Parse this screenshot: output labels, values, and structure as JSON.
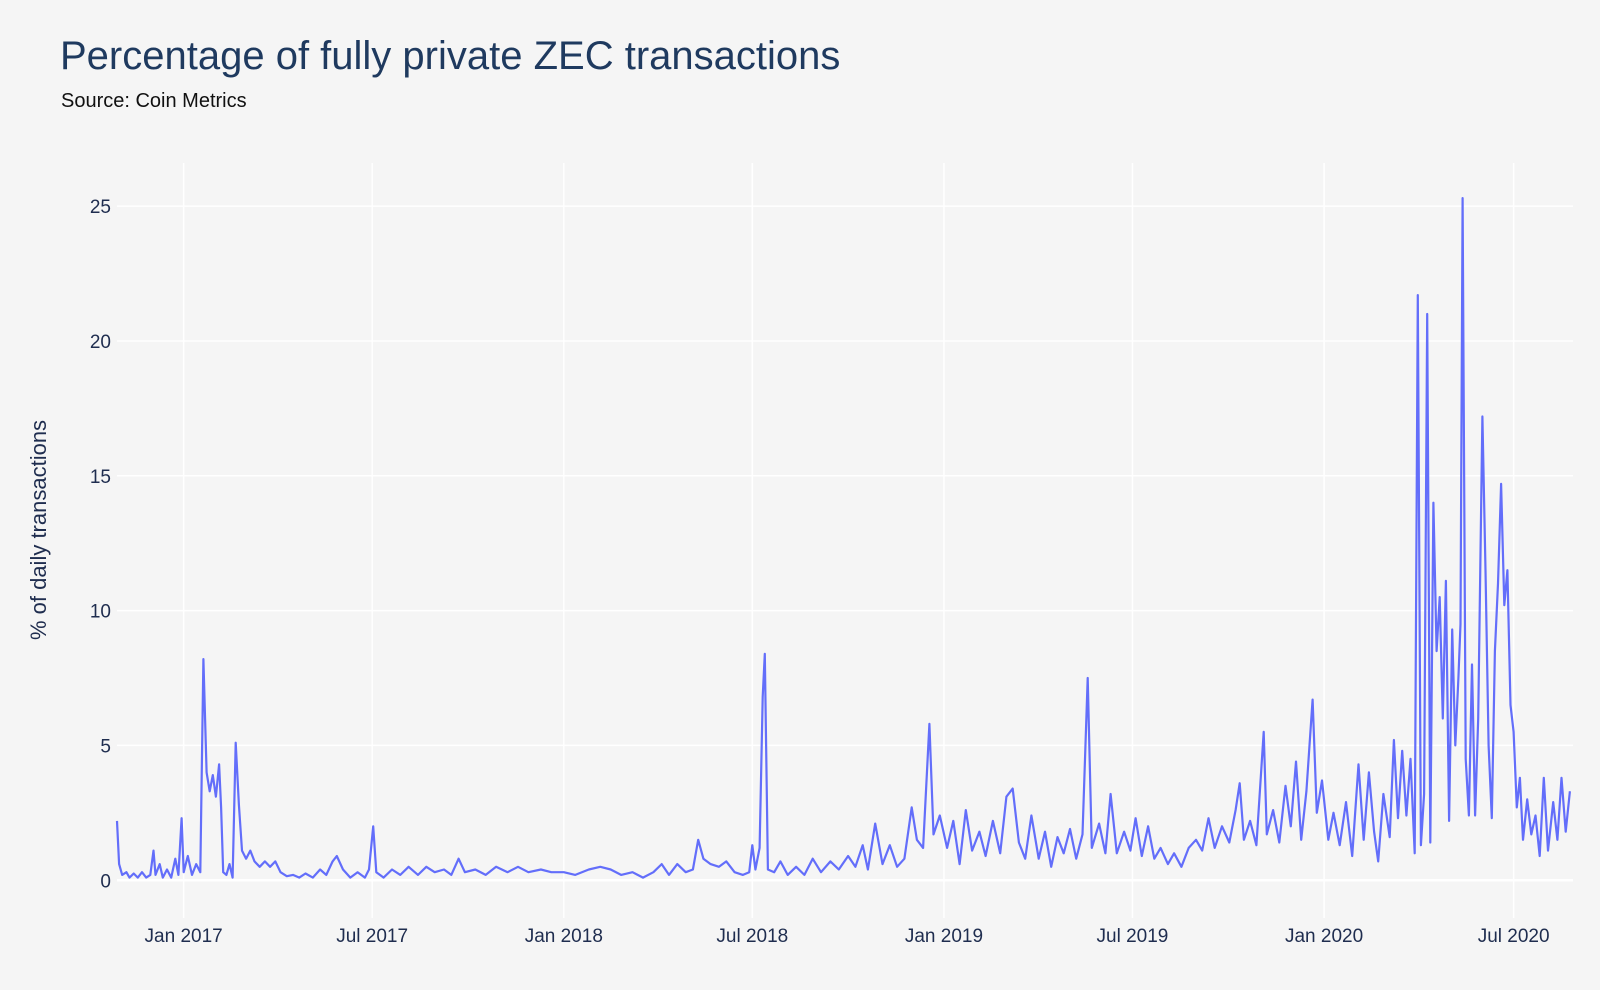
{
  "chart_data": {
    "type": "line",
    "title": "Percentage of fully private ZEC transactions",
    "subtitle": "Source: Coin Metrics",
    "xlabel": "",
    "ylabel": "% of daily transactions",
    "xlim": [
      "2016-10-29",
      "2020-08-27"
    ],
    "ylim": [
      -1.4,
      26.6
    ],
    "x_ticks": [
      {
        "date": "2017-01-01",
        "label": "Jan 2017"
      },
      {
        "date": "2017-07-01",
        "label": "Jul 2017"
      },
      {
        "date": "2018-01-01",
        "label": "Jan 2018"
      },
      {
        "date": "2018-07-01",
        "label": "Jul 2018"
      },
      {
        "date": "2019-01-01",
        "label": "Jan 2019"
      },
      {
        "date": "2019-07-01",
        "label": "Jul 2019"
      },
      {
        "date": "2020-01-01",
        "label": "Jan 2020"
      },
      {
        "date": "2020-07-01",
        "label": "Jul 2020"
      }
    ],
    "y_ticks": [
      0,
      5,
      10,
      15,
      20,
      25
    ],
    "grid": true,
    "line_color": "#636efa",
    "background": "#f5f5f5",
    "series": [
      {
        "x": [
          "2016-10-29",
          "2016-10-31",
          "2016-11-03",
          "2016-11-07",
          "2016-11-10",
          "2016-11-14",
          "2016-11-18",
          "2016-11-22",
          "2016-11-26",
          "2016-11-30",
          "2016-12-03",
          "2016-12-05",
          "2016-12-09",
          "2016-12-12",
          "2016-12-16",
          "2016-12-20",
          "2016-12-24",
          "2016-12-27",
          "2016-12-30",
          "2017-01-01",
          "2017-01-05",
          "2017-01-09",
          "2017-01-13",
          "2017-01-17",
          "2017-01-20",
          "2017-01-23",
          "2017-01-26",
          "2017-01-29",
          "2017-02-01",
          "2017-02-04",
          "2017-02-06",
          "2017-02-08",
          "2017-02-11",
          "2017-02-14",
          "2017-02-17",
          "2017-02-20",
          "2017-02-23",
          "2017-02-26",
          "2017-03-02",
          "2017-03-06",
          "2017-03-10",
          "2017-03-15",
          "2017-03-20",
          "2017-03-25",
          "2017-03-30",
          "2017-04-04",
          "2017-04-10",
          "2017-04-16",
          "2017-04-22",
          "2017-04-28",
          "2017-05-05",
          "2017-05-12",
          "2017-05-18",
          "2017-05-24",
          "2017-05-28",
          "2017-06-03",
          "2017-06-10",
          "2017-06-17",
          "2017-06-24",
          "2017-06-28",
          "2017-07-02",
          "2017-07-05",
          "2017-07-12",
          "2017-07-20",
          "2017-07-28",
          "2017-08-05",
          "2017-08-14",
          "2017-08-22",
          "2017-08-30",
          "2017-09-08",
          "2017-09-15",
          "2017-09-22",
          "2017-09-28",
          "2017-10-08",
          "2017-10-18",
          "2017-10-28",
          "2017-11-08",
          "2017-11-18",
          "2017-11-28",
          "2017-12-10",
          "2017-12-20",
          "2018-01-01",
          "2018-01-12",
          "2018-01-25",
          "2018-02-05",
          "2018-02-15",
          "2018-02-25",
          "2018-03-08",
          "2018-03-18",
          "2018-03-28",
          "2018-04-05",
          "2018-04-12",
          "2018-04-20",
          "2018-04-28",
          "2018-05-05",
          "2018-05-10",
          "2018-05-15",
          "2018-05-22",
          "2018-05-30",
          "2018-06-06",
          "2018-06-14",
          "2018-06-22",
          "2018-06-28",
          "2018-07-01",
          "2018-07-04",
          "2018-07-08",
          "2018-07-11",
          "2018-07-13",
          "2018-07-16",
          "2018-07-22",
          "2018-07-28",
          "2018-08-04",
          "2018-08-12",
          "2018-08-20",
          "2018-08-28",
          "2018-09-05",
          "2018-09-14",
          "2018-09-22",
          "2018-10-01",
          "2018-10-08",
          "2018-10-15",
          "2018-10-20",
          "2018-10-27",
          "2018-11-03",
          "2018-11-10",
          "2018-11-17",
          "2018-11-24",
          "2018-12-01",
          "2018-12-06",
          "2018-12-12",
          "2018-12-18",
          "2018-12-22",
          "2018-12-28",
          "2019-01-04",
          "2019-01-10",
          "2019-01-16",
          "2019-01-22",
          "2019-01-28",
          "2019-02-04",
          "2019-02-10",
          "2019-02-17",
          "2019-02-24",
          "2019-03-02",
          "2019-03-08",
          "2019-03-14",
          "2019-03-20",
          "2019-03-26",
          "2019-04-02",
          "2019-04-08",
          "2019-04-14",
          "2019-04-20",
          "2019-04-26",
          "2019-05-02",
          "2019-05-08",
          "2019-05-14",
          "2019-05-19",
          "2019-05-23",
          "2019-05-30",
          "2019-06-05",
          "2019-06-10",
          "2019-06-16",
          "2019-06-23",
          "2019-06-29",
          "2019-07-04",
          "2019-07-10",
          "2019-07-16",
          "2019-07-22",
          "2019-07-28",
          "2019-08-04",
          "2019-08-10",
          "2019-08-17",
          "2019-08-24",
          "2019-08-31",
          "2019-09-06",
          "2019-09-12",
          "2019-09-18",
          "2019-09-25",
          "2019-10-02",
          "2019-10-08",
          "2019-10-12",
          "2019-10-16",
          "2019-10-22",
          "2019-10-28",
          "2019-11-04",
          "2019-11-07",
          "2019-11-13",
          "2019-11-19",
          "2019-11-25",
          "2019-11-30",
          "2019-12-05",
          "2019-12-10",
          "2019-12-15",
          "2019-12-21",
          "2019-12-25",
          "2019-12-30",
          "2020-01-05",
          "2020-01-10",
          "2020-01-16",
          "2020-01-22",
          "2020-01-28",
          "2020-02-03",
          "2020-02-08",
          "2020-02-13",
          "2020-02-18",
          "2020-02-22",
          "2020-02-27",
          "2020-03-04",
          "2020-03-08",
          "2020-03-12",
          "2020-03-16",
          "2020-03-20",
          "2020-03-24",
          "2020-03-28",
          "2020-03-31",
          "2020-04-03",
          "2020-04-06",
          "2020-04-09",
          "2020-04-12",
          "2020-04-15",
          "2020-04-18",
          "2020-04-21",
          "2020-04-24",
          "2020-04-27",
          "2020-04-30",
          "2020-05-03",
          "2020-05-06",
          "2020-05-09",
          "2020-05-11",
          "2020-05-13",
          "2020-05-16",
          "2020-05-19",
          "2020-05-22",
          "2020-05-25",
          "2020-05-28",
          "2020-06-01",
          "2020-06-04",
          "2020-06-07",
          "2020-06-10",
          "2020-06-13",
          "2020-06-16",
          "2020-06-19",
          "2020-06-22",
          "2020-06-25",
          "2020-06-28",
          "2020-07-01",
          "2020-07-04",
          "2020-07-07",
          "2020-07-10",
          "2020-07-14",
          "2020-07-18",
          "2020-07-22",
          "2020-07-26",
          "2020-07-30",
          "2020-08-03",
          "2020-08-08",
          "2020-08-12",
          "2020-08-16",
          "2020-08-20",
          "2020-08-24"
        ],
        "y": [
          2.2,
          0.6,
          0.2,
          0.3,
          0.1,
          0.25,
          0.1,
          0.3,
          0.1,
          0.2,
          1.1,
          0.2,
          0.6,
          0.1,
          0.4,
          0.1,
          0.8,
          0.2,
          2.3,
          0.3,
          0.9,
          0.2,
          0.6,
          0.3,
          8.2,
          4.0,
          3.3,
          3.9,
          3.1,
          4.3,
          2.7,
          0.3,
          0.2,
          0.6,
          0.1,
          5.1,
          2.8,
          1.1,
          0.8,
          1.1,
          0.7,
          0.5,
          0.7,
          0.5,
          0.7,
          0.3,
          0.15,
          0.2,
          0.1,
          0.25,
          0.1,
          0.4,
          0.2,
          0.7,
          0.9,
          0.4,
          0.1,
          0.3,
          0.1,
          0.4,
          2.0,
          0.3,
          0.1,
          0.4,
          0.2,
          0.5,
          0.2,
          0.5,
          0.3,
          0.4,
          0.2,
          0.8,
          0.3,
          0.4,
          0.2,
          0.5,
          0.3,
          0.5,
          0.3,
          0.4,
          0.3,
          0.3,
          0.2,
          0.4,
          0.5,
          0.4,
          0.2,
          0.3,
          0.1,
          0.3,
          0.6,
          0.2,
          0.6,
          0.3,
          0.4,
          1.5,
          0.8,
          0.6,
          0.5,
          0.7,
          0.3,
          0.2,
          0.3,
          1.3,
          0.4,
          1.2,
          6.8,
          8.4,
          0.4,
          0.3,
          0.7,
          0.2,
          0.5,
          0.2,
          0.8,
          0.3,
          0.7,
          0.4,
          0.9,
          0.5,
          1.3,
          0.4,
          2.1,
          0.6,
          1.3,
          0.5,
          0.8,
          2.7,
          1.5,
          1.2,
          5.8,
          1.7,
          2.4,
          1.2,
          2.2,
          0.6,
          2.6,
          1.1,
          1.8,
          0.9,
          2.2,
          1.0,
          3.1,
          3.4,
          1.4,
          0.8,
          2.4,
          0.8,
          1.8,
          0.5,
          1.6,
          1.0,
          1.9,
          0.8,
          1.7,
          7.5,
          1.2,
          2.1,
          1.0,
          3.2,
          1.0,
          1.8,
          1.1,
          2.3,
          0.9,
          2.0,
          0.8,
          1.2,
          0.6,
          1.0,
          0.5,
          1.2,
          1.5,
          1.1,
          2.3,
          1.2,
          2.0,
          1.4,
          2.6,
          3.6,
          1.5,
          2.2,
          1.3,
          5.5,
          1.7,
          2.6,
          1.4,
          3.5,
          2.0,
          4.4,
          1.5,
          3.3,
          6.7,
          2.5,
          3.7,
          1.5,
          2.5,
          1.3,
          2.9,
          0.9,
          4.3,
          1.5,
          4.0,
          1.8,
          0.7,
          3.2,
          1.6,
          5.2,
          2.3,
          4.8,
          2.4,
          4.5,
          1.0,
          21.7,
          1.3,
          3.2,
          21.0,
          1.4,
          14.0,
          8.5,
          10.5,
          6.0,
          11.1,
          2.2,
          9.3,
          5.0,
          7.5,
          9.5,
          25.3,
          4.5,
          2.4,
          8.0,
          2.4,
          6.0,
          17.2,
          11.5,
          5.0,
          2.3,
          8.5,
          11.0,
          14.7,
          10.2,
          11.5,
          6.5,
          5.5,
          2.7,
          3.8,
          1.5,
          3.0,
          1.7,
          2.4,
          0.9,
          3.8,
          1.1,
          2.9,
          1.5,
          3.8,
          1.8,
          3.3
        ]
      }
    ]
  }
}
